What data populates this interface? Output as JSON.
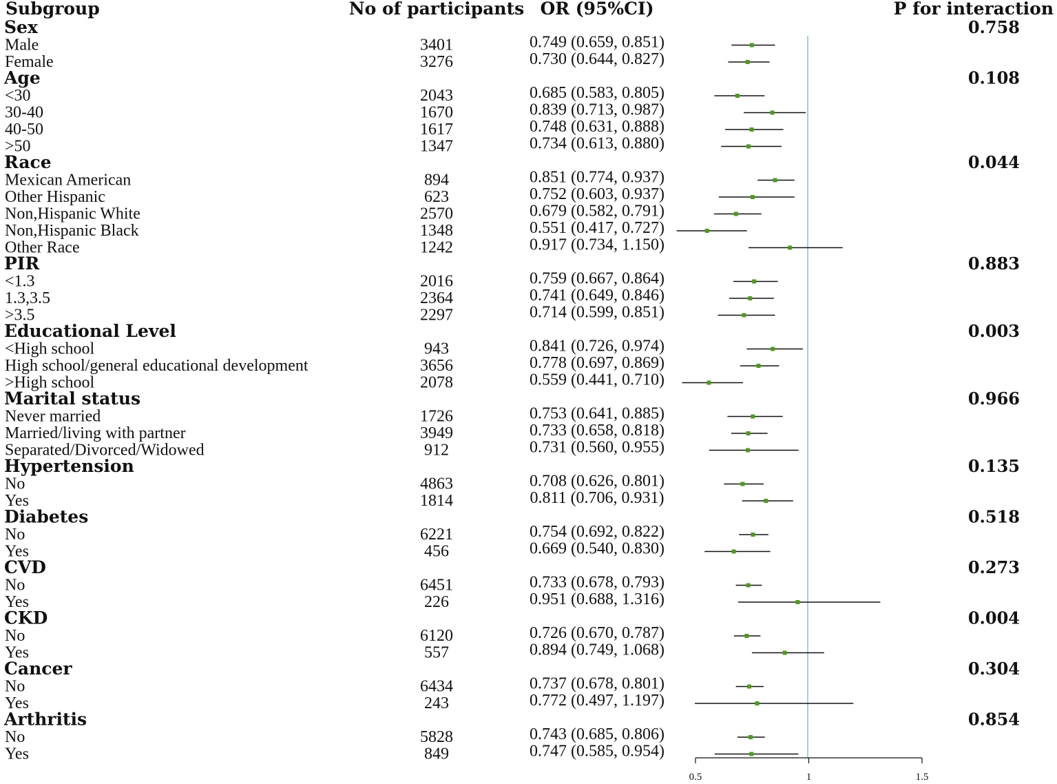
{
  "chart_data": {
    "type": "forest",
    "headers": {
      "subgroup": "Subgroup",
      "participants": "No of participants",
      "or": "OR (95%CI)",
      "p": "P for interaction"
    },
    "reference_line": 1,
    "xlim": [
      0.5,
      1.5
    ],
    "ticks": [
      {
        "value": 0.5,
        "label": "0.5"
      },
      {
        "value": 1,
        "label": "1"
      },
      {
        "value": 1.5,
        "label": "1.5"
      }
    ],
    "groups": [
      {
        "name": "Sex",
        "p": "0.758",
        "rows": [
          {
            "label": "Male",
            "n": "3401",
            "text": "0.749 (0.659, 0.851)",
            "or": 0.749,
            "lo": 0.659,
            "hi": 0.851
          },
          {
            "label": "Female",
            "n": "3276",
            "text": "0.730 (0.644, 0.827)",
            "or": 0.73,
            "lo": 0.644,
            "hi": 0.827
          }
        ]
      },
      {
        "name": "Age",
        "p": "0.108",
        "rows": [
          {
            "label": "<30",
            "n": "2043",
            "text": "0.685 (0.583, 0.805)",
            "or": 0.685,
            "lo": 0.583,
            "hi": 0.805
          },
          {
            "label": "30-40",
            "n": "1670",
            "text": "0.839 (0.713, 0.987)",
            "or": 0.839,
            "lo": 0.713,
            "hi": 0.987
          },
          {
            "label": "40-50",
            "n": "1617",
            "text": "0.748 (0.631, 0.888)",
            "or": 0.748,
            "lo": 0.631,
            "hi": 0.888
          },
          {
            "label": ">50",
            "n": "1347",
            "text": "0.734 (0.613, 0.880)",
            "or": 0.734,
            "lo": 0.613,
            "hi": 0.88
          }
        ]
      },
      {
        "name": "Race",
        "p": "0.044",
        "rows": [
          {
            "label": "Mexican American",
            "n": "894",
            "text": "0.851 (0.774, 0.937)",
            "or": 0.851,
            "lo": 0.774,
            "hi": 0.937
          },
          {
            "label": "Other Hispanic",
            "n": "623",
            "text": "0.752 (0.603, 0.937)",
            "or": 0.752,
            "lo": 0.603,
            "hi": 0.937
          },
          {
            "label": "Non,Hispanic White",
            "n": "2570",
            "text": "0.679 (0.582, 0.791)",
            "or": 0.679,
            "lo": 0.582,
            "hi": 0.791
          },
          {
            "label": "Non,Hispanic Black",
            "n": "1348",
            "text": "0.551 (0.417, 0.727)",
            "or": 0.551,
            "lo": 0.417,
            "hi": 0.727
          },
          {
            "label": "Other Race",
            "n": "1242",
            "text": "0.917 (0.734, 1.150)",
            "or": 0.917,
            "lo": 0.734,
            "hi": 1.15
          }
        ]
      },
      {
        "name": "PIR",
        "p": "0.883",
        "rows": [
          {
            "label": "<1.3",
            "n": "2016",
            "text": "0.759 (0.667, 0.864)",
            "or": 0.759,
            "lo": 0.667,
            "hi": 0.864
          },
          {
            "label": "1.3,3.5",
            "n": "2364",
            "text": "0.741 (0.649, 0.846)",
            "or": 0.741,
            "lo": 0.649,
            "hi": 0.846
          },
          {
            "label": ">3.5",
            "n": "2297",
            "text": "0.714 (0.599, 0.851)",
            "or": 0.714,
            "lo": 0.599,
            "hi": 0.851
          }
        ]
      },
      {
        "name": "Educational Level",
        "p": "0.003",
        "rows": [
          {
            "label": "<High school",
            "n": "943",
            "text": "0.841 (0.726, 0.974)",
            "or": 0.841,
            "lo": 0.726,
            "hi": 0.974
          },
          {
            "label": "High school/general educational development",
            "n": "3656",
            "text": "0.778 (0.697, 0.869)",
            "or": 0.778,
            "lo": 0.697,
            "hi": 0.869
          },
          {
            "label": ">High school",
            "n": "2078",
            "text": "0.559 (0.441, 0.710)",
            "or": 0.559,
            "lo": 0.441,
            "hi": 0.71
          }
        ]
      },
      {
        "name": "Marital status",
        "p": "0.966",
        "rows": [
          {
            "label": "Never married",
            "n": "1726",
            "text": "0.753 (0.641, 0.885)",
            "or": 0.753,
            "lo": 0.641,
            "hi": 0.885
          },
          {
            "label": "Married/living with partner",
            "n": "3949",
            "text": "0.733 (0.658, 0.818)",
            "or": 0.733,
            "lo": 0.658,
            "hi": 0.818
          },
          {
            "label": "Separated/Divorced/Widowed",
            "n": "912",
            "text": "0.731 (0.560, 0.955)",
            "or": 0.731,
            "lo": 0.56,
            "hi": 0.955
          }
        ]
      },
      {
        "name": "Hypertension",
        "p": "0.135",
        "rows": [
          {
            "label": "No",
            "n": "4863",
            "text": "0.708 (0.626, 0.801)",
            "or": 0.708,
            "lo": 0.626,
            "hi": 0.801
          },
          {
            "label": "Yes",
            "n": "1814",
            "text": "0.811 (0.706, 0.931)",
            "or": 0.811,
            "lo": 0.706,
            "hi": 0.931
          }
        ]
      },
      {
        "name": "Diabetes",
        "p": "0.518",
        "rows": [
          {
            "label": "No",
            "n": "6221",
            "text": "0.754 (0.692, 0.822)",
            "or": 0.754,
            "lo": 0.692,
            "hi": 0.822
          },
          {
            "label": "Yes",
            "n": "456",
            "text": "0.669 (0.540, 0.830)",
            "or": 0.669,
            "lo": 0.54,
            "hi": 0.83
          }
        ]
      },
      {
        "name": "CVD",
        "p": "0.273",
        "rows": [
          {
            "label": "No",
            "n": "6451",
            "text": "0.733 (0.678, 0.793)",
            "or": 0.733,
            "lo": 0.678,
            "hi": 0.793
          },
          {
            "label": "Yes",
            "n": "226",
            "text": "0.951 (0.688, 1.316)",
            "or": 0.951,
            "lo": 0.688,
            "hi": 1.316
          }
        ]
      },
      {
        "name": "CKD",
        "p": "0.004",
        "rows": [
          {
            "label": "No",
            "n": "6120",
            "text": "0.726 (0.670, 0.787)",
            "or": 0.726,
            "lo": 0.67,
            "hi": 0.787
          },
          {
            "label": "Yes",
            "n": "557",
            "text": "0.894 (0.749, 1.068)",
            "or": 0.894,
            "lo": 0.749,
            "hi": 1.068
          }
        ]
      },
      {
        "name": "Cancer",
        "p": "0.304",
        "rows": [
          {
            "label": "No",
            "n": "6434",
            "text": "0.737 (0.678, 0.801)",
            "or": 0.737,
            "lo": 0.678,
            "hi": 0.801
          },
          {
            "label": "Yes",
            "n": "243",
            "text": "0.772 (0.497, 1.197)",
            "or": 0.772,
            "lo": 0.497,
            "hi": 1.197
          }
        ]
      },
      {
        "name": "Arthritis",
        "p": "0.854",
        "rows": [
          {
            "label": "No",
            "n": "5828",
            "text": "0.743 (0.685, 0.806)",
            "or": 0.743,
            "lo": 0.685,
            "hi": 0.806
          },
          {
            "label": "Yes",
            "n": "849",
            "text": "0.747 (0.585, 0.954)",
            "or": 0.747,
            "lo": 0.585,
            "hi": 0.954
          }
        ]
      }
    ]
  }
}
